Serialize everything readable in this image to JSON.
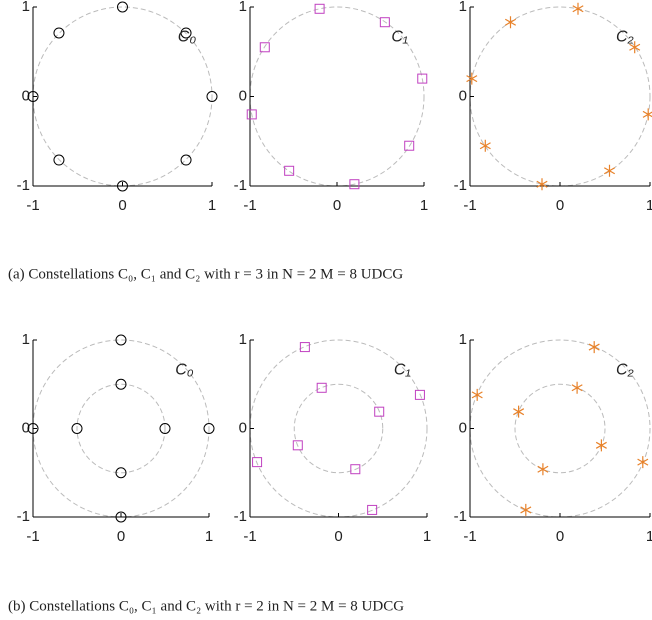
{
  "chart_data": [
    {
      "type": "scatter",
      "annotation": "C₀",
      "marker": "circle",
      "color": "#000000",
      "x": [
        1,
        0.71,
        0,
        -0.71,
        -1,
        -0.71,
        0,
        0.71
      ],
      "y": [
        0,
        0.71,
        1,
        0.71,
        0,
        -0.71,
        -1,
        -0.71
      ],
      "rings": [
        1
      ],
      "xlim": [
        -1,
        1
      ],
      "ylim": [
        -1,
        1
      ],
      "xticks": [
        -1,
        0,
        1
      ],
      "yticks": [
        -1,
        0,
        1
      ]
    },
    {
      "type": "scatter",
      "annotation": "C₁",
      "marker": "square",
      "color": "#c040c0",
      "x": [
        -0.2,
        0.55,
        0.98,
        0.83,
        0.2,
        -0.55,
        -0.98,
        -0.83
      ],
      "y": [
        0.98,
        0.83,
        0.2,
        -0.55,
        -0.98,
        -0.83,
        -0.2,
        0.55
      ],
      "rings": [
        1
      ],
      "xlim": [
        -1,
        1
      ],
      "ylim": [
        -1,
        1
      ],
      "xticks": [
        -1,
        0,
        1
      ],
      "yticks": [
        -1,
        0,
        1
      ]
    },
    {
      "type": "scatter",
      "annotation": "C₂",
      "marker": "asterisk",
      "color": "#e8822a",
      "x": [
        0.2,
        0.83,
        0.98,
        0.55,
        -0.2,
        -0.83,
        -0.98,
        -0.55
      ],
      "y": [
        0.98,
        0.55,
        -0.2,
        -0.83,
        -0.98,
        -0.55,
        0.2,
        0.83
      ],
      "rings": [
        1
      ],
      "xlim": [
        -1,
        1
      ],
      "ylim": [
        -1,
        1
      ],
      "xticks": [
        -1,
        0,
        1
      ],
      "yticks": [
        -1,
        0,
        1
      ]
    },
    {
      "type": "scatter",
      "annotation": "C₀",
      "marker": "circle",
      "color": "#000000",
      "x": [
        0,
        1,
        0,
        -1,
        0,
        0.5,
        0,
        -0.5
      ],
      "y": [
        1,
        0,
        -1,
        0,
        0.5,
        0,
        -0.5,
        0
      ],
      "rings": [
        1,
        0.5
      ],
      "xlim": [
        -1,
        1
      ],
      "ylim": [
        -1,
        1
      ],
      "xticks": [
        -1,
        0,
        1
      ],
      "yticks": [
        -1,
        0,
        1
      ]
    },
    {
      "type": "scatter",
      "annotation": "C₁",
      "marker": "square",
      "color": "#c040c0",
      "x": [
        -0.38,
        0.92,
        0.38,
        -0.92,
        -0.19,
        0.46,
        0.19,
        -0.46
      ],
      "y": [
        0.92,
        0.38,
        -0.92,
        -0.38,
        0.46,
        0.19,
        -0.46,
        -0.19
      ],
      "rings": [
        1,
        0.5
      ],
      "xlim": [
        -1,
        1
      ],
      "ylim": [
        -1,
        1
      ],
      "xticks": [
        -1,
        0,
        1
      ],
      "yticks": [
        -1,
        0,
        1
      ]
    },
    {
      "type": "scatter",
      "annotation": "C₂",
      "marker": "asterisk",
      "color": "#e8822a",
      "x": [
        0.38,
        0.92,
        -0.38,
        -0.92,
        0.19,
        0.46,
        -0.19,
        -0.46
      ],
      "y": [
        0.92,
        -0.38,
        -0.92,
        0.38,
        0.46,
        -0.19,
        -0.46,
        0.19
      ],
      "rings": [
        1,
        0.5
      ],
      "xlim": [
        -1,
        1
      ],
      "ylim": [
        -1,
        1
      ],
      "xticks": [
        -1,
        0,
        1
      ],
      "yticks": [
        -1,
        0,
        1
      ]
    }
  ],
  "captions": [
    "(a) Constellations C₀, C₁ and C₂ with r = 3 in N = 2 M = 8 UDCG",
    "(b) Constellations C₀, C₁ and C₂ with r = 2 in N = 2 M = 8 UDCG"
  ]
}
